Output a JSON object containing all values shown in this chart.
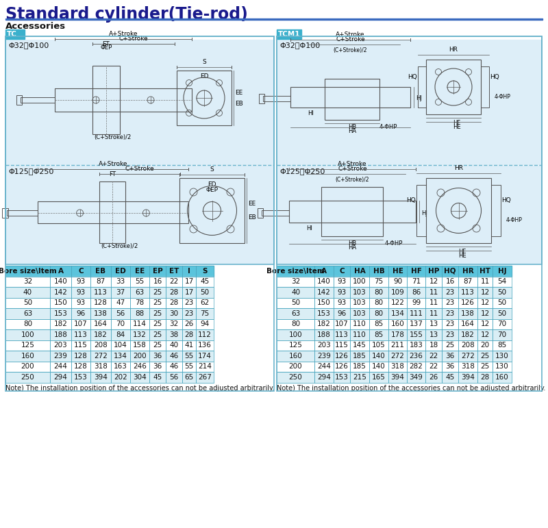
{
  "title": "Standard cylinder(Tie-rod)",
  "subtitle": "Accessories",
  "tc_label": "TC",
  "tcm1_label": "TCM1",
  "tc_range1": "Φ32～Φ100",
  "tc_range2": "Φ125～Φ250",
  "tcm1_range1": "Φ32～Φ100",
  "tcm1_range2": "Φ125～Φ250",
  "tc_headers": [
    "Bore size\\Item",
    "A",
    "C",
    "EB",
    "ED",
    "EE",
    "EP",
    "ET",
    "I",
    "S"
  ],
  "tc_data": [
    [
      "32",
      "140",
      "93",
      "87",
      "33",
      "55",
      "16",
      "22",
      "17",
      "45"
    ],
    [
      "40",
      "142",
      "93",
      "113",
      "37",
      "63",
      "25",
      "28",
      "17",
      "50"
    ],
    [
      "50",
      "150",
      "93",
      "128",
      "47",
      "78",
      "25",
      "28",
      "23",
      "62"
    ],
    [
      "63",
      "153",
      "96",
      "138",
      "56",
      "88",
      "25",
      "30",
      "23",
      "75"
    ],
    [
      "80",
      "182",
      "107",
      "164",
      "70",
      "114",
      "25",
      "32",
      "26",
      "94"
    ],
    [
      "100",
      "188",
      "113",
      "182",
      "84",
      "132",
      "25",
      "38",
      "28",
      "112"
    ],
    [
      "125",
      "203",
      "115",
      "208",
      "104",
      "158",
      "25",
      "40",
      "41",
      "136"
    ],
    [
      "160",
      "239",
      "128",
      "272",
      "134",
      "200",
      "36",
      "46",
      "55",
      "174"
    ],
    [
      "200",
      "244",
      "128",
      "318",
      "163",
      "246",
      "36",
      "46",
      "55",
      "214"
    ],
    [
      "250",
      "294",
      "153",
      "394",
      "202",
      "304",
      "45",
      "56",
      "65",
      "267"
    ]
  ],
  "tcm1_headers": [
    "Bore size\\Item",
    "A",
    "C",
    "HA",
    "HB",
    "HE",
    "HF",
    "HP",
    "HQ",
    "HR",
    "HT",
    "HJ"
  ],
  "tcm1_data": [
    [
      "32",
      "140",
      "93",
      "100",
      "75",
      "90",
      "71",
      "12",
      "16",
      "87",
      "11",
      "54"
    ],
    [
      "40",
      "142",
      "93",
      "103",
      "80",
      "109",
      "86",
      "11",
      "23",
      "113",
      "12",
      "50"
    ],
    [
      "50",
      "150",
      "93",
      "103",
      "80",
      "122",
      "99",
      "11",
      "23",
      "126",
      "12",
      "50"
    ],
    [
      "63",
      "153",
      "96",
      "103",
      "80",
      "134",
      "111",
      "11",
      "23",
      "138",
      "12",
      "50"
    ],
    [
      "80",
      "182",
      "107",
      "110",
      "85",
      "160",
      "137",
      "13",
      "23",
      "164",
      "12",
      "70"
    ],
    [
      "100",
      "188",
      "113",
      "110",
      "85",
      "178",
      "155",
      "13",
      "23",
      "182",
      "12",
      "70"
    ],
    [
      "125",
      "203",
      "115",
      "145",
      "105",
      "211",
      "183",
      "18",
      "25",
      "208",
      "20",
      "85"
    ],
    [
      "160",
      "239",
      "126",
      "185",
      "140",
      "272",
      "236",
      "22",
      "36",
      "272",
      "25",
      "130"
    ],
    [
      "200",
      "244",
      "126",
      "185",
      "140",
      "318",
      "282",
      "22",
      "36",
      "318",
      "25",
      "130"
    ],
    [
      "250",
      "294",
      "153",
      "215",
      "165",
      "394",
      "349",
      "26",
      "45",
      "394",
      "28",
      "160"
    ]
  ],
  "note": "Note) The installation position of the accessories can not be adjusted arbitrarily.",
  "header_bg": "#5bc4dc",
  "row_bg_even": "#daeef5",
  "row_bg_odd": "#ffffff",
  "border_color": "#4da8c0",
  "title_color": "#1a1a8c",
  "label_bg": "#3ab0cc",
  "section_border": "#6ab4cc",
  "diagram_bg": "#ddeef8",
  "line_color": "#555555"
}
